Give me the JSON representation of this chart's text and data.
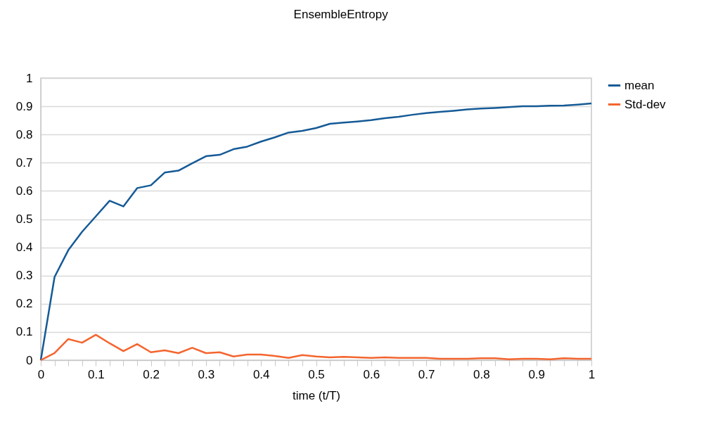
{
  "chart_data": {
    "type": "line",
    "title": "EnsembleEntropy",
    "xlabel": "time (t/T)",
    "x": [
      0,
      0.025,
      0.05,
      0.075,
      0.1,
      0.125,
      0.15,
      0.175,
      0.2,
      0.225,
      0.25,
      0.275,
      0.3,
      0.325,
      0.35,
      0.375,
      0.4,
      0.425,
      0.45,
      0.475,
      0.5,
      0.525,
      0.55,
      0.575,
      0.6,
      0.625,
      0.65,
      0.675,
      0.7,
      0.725,
      0.75,
      0.775,
      0.8,
      0.825,
      0.85,
      0.875,
      0.9,
      0.925,
      0.95,
      0.975,
      1
    ],
    "series": [
      {
        "name": "mean",
        "color": "#155a96",
        "values": [
          0,
          0.295,
          0.39,
          0.455,
          0.51,
          0.565,
          0.545,
          0.61,
          0.62,
          0.665,
          0.672,
          0.698,
          0.723,
          0.728,
          0.748,
          0.757,
          0.775,
          0.79,
          0.807,
          0.813,
          0.823,
          0.838,
          0.842,
          0.846,
          0.851,
          0.858,
          0.863,
          0.87,
          0.876,
          0.88,
          0.884,
          0.889,
          0.892,
          0.894,
          0.897,
          0.9,
          0.9,
          0.902,
          0.903,
          0.906,
          0.91
        ]
      },
      {
        "name": "Std-dev",
        "color": "#f4652f",
        "values": [
          0,
          0.025,
          0.075,
          0.062,
          0.09,
          0.06,
          0.032,
          0.057,
          0.028,
          0.035,
          0.025,
          0.044,
          0.025,
          0.028,
          0.013,
          0.02,
          0.02,
          0.015,
          0.008,
          0.018,
          0.013,
          0.01,
          0.012,
          0.01,
          0.008,
          0.01,
          0.008,
          0.008,
          0.008,
          0.005,
          0.005,
          0.005,
          0.007,
          0.007,
          0.003,
          0.005,
          0.005,
          0.003,
          0.007,
          0.005,
          0.005
        ]
      }
    ],
    "xlim": [
      0,
      1
    ],
    "xticks": [
      0,
      {
        "value": 0.025,
        "label": null
      },
      0.1,
      {
        "value": 0.05,
        "label": null
      },
      {
        "value": 0.075,
        "label": null
      },
      {
        "value": 0.125,
        "label": null
      },
      {
        "value": 0.15,
        "label": null
      },
      {
        "value": 0.175,
        "label": null
      },
      0.2,
      {
        "value": 0.225,
        "label": null
      },
      {
        "value": 0.25,
        "label": null
      },
      {
        "value": 0.275,
        "label": null
      },
      0.3,
      {
        "value": 0.325,
        "label": null
      },
      {
        "value": 0.35,
        "label": null
      },
      {
        "value": 0.375,
        "label": null
      },
      0.4,
      {
        "value": 0.425,
        "label": null
      },
      {
        "value": 0.45,
        "label": null
      },
      {
        "value": 0.475,
        "label": null
      },
      0.5,
      {
        "value": 0.525,
        "label": null
      },
      {
        "value": 0.55,
        "label": null
      },
      {
        "value": 0.575,
        "label": null
      },
      0.6,
      {
        "value": 0.625,
        "label": null
      },
      {
        "value": 0.65,
        "label": null
      },
      {
        "value": 0.675,
        "label": null
      },
      0.7,
      {
        "value": 0.725,
        "label": null
      },
      {
        "value": 0.75,
        "label": null
      },
      {
        "value": 0.775,
        "label": null
      },
      0.8,
      {
        "value": 0.825,
        "label": null
      },
      {
        "value": 0.85,
        "label": null
      },
      {
        "value": 0.875,
        "label": null
      },
      0.9,
      {
        "value": 0.925,
        "label": null
      },
      {
        "value": 0.95,
        "label": null
      },
      {
        "value": 0.975,
        "label": null
      },
      1
    ],
    "ylim": [
      0,
      1
    ],
    "yticks": [
      0,
      0.1,
      0.2,
      0.3,
      0.4,
      0.5,
      0.6,
      0.7,
      0.8,
      0.9,
      1
    ],
    "grid": "y",
    "legend": "right",
    "marker": "none",
    "line_style": "solid"
  }
}
